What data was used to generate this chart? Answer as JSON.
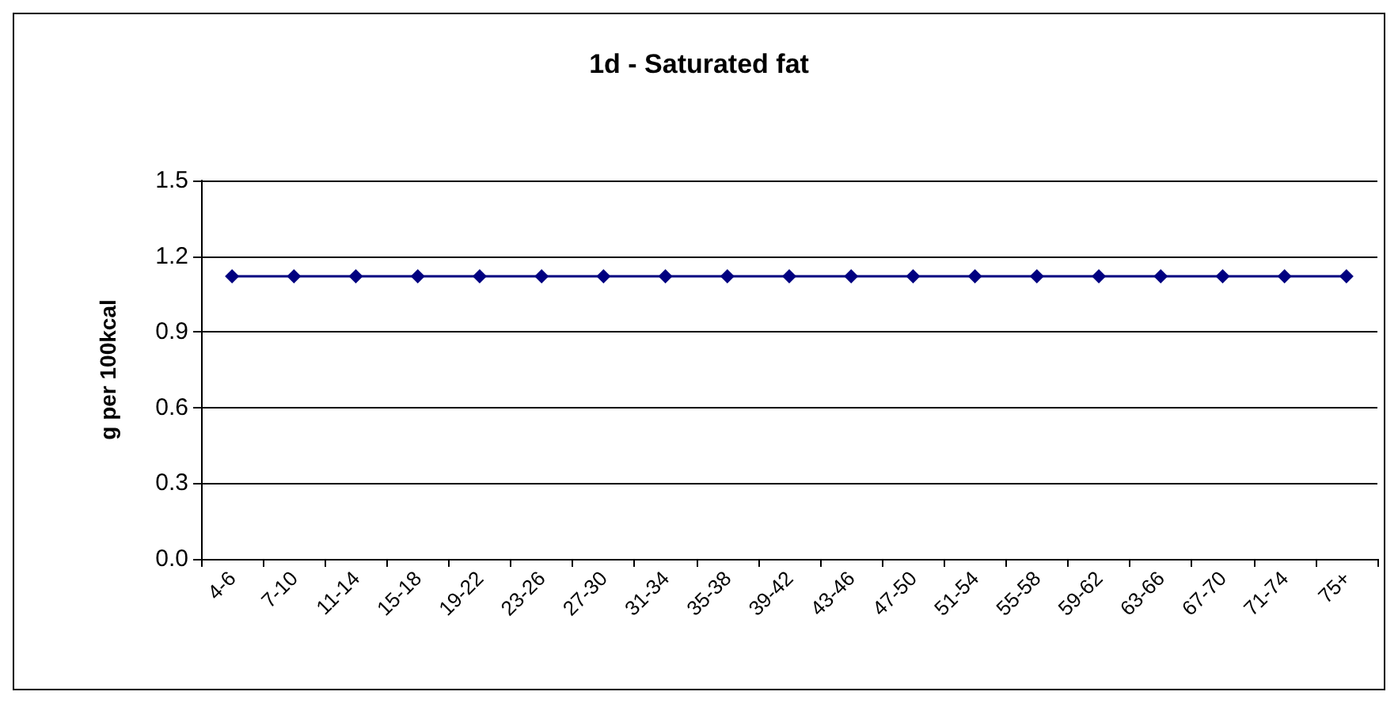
{
  "chart_data": {
    "type": "line",
    "title": "1d - Saturated fat",
    "ylabel": "g per 100kcal",
    "categories": [
      "4-6",
      "7-10",
      "11-14",
      "15-18",
      "19-22",
      "23-26",
      "27-30",
      "31-34",
      "35-38",
      "39-42",
      "43-46",
      "47-50",
      "51-54",
      "55-58",
      "59-62",
      "63-66",
      "67-70",
      "71-74",
      "75+"
    ],
    "series": [
      {
        "color": "#000080",
        "values": [
          1.12,
          1.12,
          1.12,
          1.12,
          1.12,
          1.12,
          1.12,
          1.12,
          1.12,
          1.12,
          1.12,
          1.12,
          1.12,
          1.12,
          1.12,
          1.12,
          1.12,
          1.12,
          1.12
        ]
      }
    ],
    "ylim": [
      0,
      1.5
    ],
    "yticks": [
      {
        "value": 0,
        "label": "0.0"
      },
      0.3,
      0.6,
      0.9,
      1.2,
      1.5
    ],
    "grid": "y",
    "marker": "diamond",
    "line_style": "solid"
  }
}
